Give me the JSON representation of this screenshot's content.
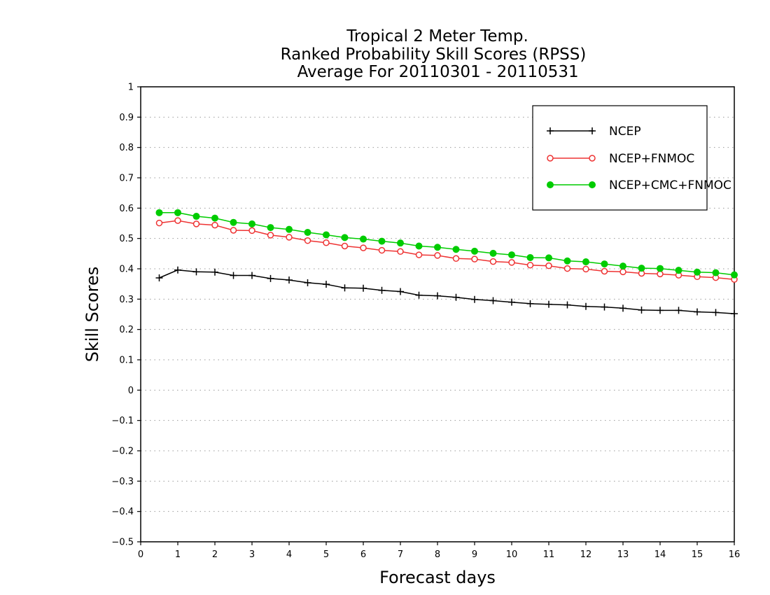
{
  "chart_data": {
    "type": "line",
    "title": [
      "Tropical 2 Meter Temp.",
      "Ranked Probability Skill Scores (RPSS)",
      " Average For 20110301 - 20110531"
    ],
    "xlabel": "Forecast days",
    "ylabel": "Skill Scores",
    "xlim": [
      0,
      16
    ],
    "ylim": [
      -0.5,
      1
    ],
    "xticks": [
      0,
      1,
      2,
      3,
      4,
      5,
      6,
      7,
      8,
      9,
      10,
      11,
      12,
      13,
      14,
      15,
      16
    ],
    "yticks": [
      1,
      0.9,
      0.8,
      0.7,
      0.6,
      0.5,
      0.4,
      0.3,
      0.2,
      0.1,
      0,
      -0.1,
      -0.2,
      -0.3,
      -0.4,
      -0.5
    ],
    "ytick_labels": [
      "1",
      "0.9",
      "0.8",
      "0.7",
      "0.6",
      "0.5",
      "0.4",
      "0.3",
      "0.2",
      "0.1",
      "0",
      "−0.1",
      "−0.2",
      "−0.3",
      "−0.4",
      "−0.5"
    ],
    "grid": "horizontal-dotted",
    "legend_position": "top-right",
    "x": [
      0.5,
      1,
      1.5,
      2,
      2.5,
      3,
      3.5,
      4,
      4.5,
      5,
      5.5,
      6,
      6.5,
      7,
      7.5,
      8,
      8.5,
      9,
      9.5,
      10,
      10.5,
      11,
      11.5,
      12,
      12.5,
      13,
      13.5,
      14,
      14.5,
      15,
      15.5,
      16
    ],
    "series": [
      {
        "name": "NCEP",
        "color": "#000000",
        "marker": "plus",
        "values": [
          0.37,
          0.396,
          0.39,
          0.389,
          0.378,
          0.378,
          0.368,
          0.363,
          0.354,
          0.349,
          0.337,
          0.336,
          0.329,
          0.325,
          0.313,
          0.311,
          0.306,
          0.299,
          0.295,
          0.29,
          0.285,
          0.283,
          0.281,
          0.276,
          0.274,
          0.27,
          0.264,
          0.263,
          0.263,
          0.258,
          0.256,
          0.252
        ]
      },
      {
        "name": "NCEP+FNMOC",
        "color": "#ee3333",
        "marker": "open-circle",
        "values": [
          0.551,
          0.559,
          0.548,
          0.544,
          0.527,
          0.526,
          0.511,
          0.504,
          0.493,
          0.486,
          0.475,
          0.469,
          0.461,
          0.457,
          0.446,
          0.444,
          0.434,
          0.432,
          0.424,
          0.421,
          0.412,
          0.41,
          0.401,
          0.399,
          0.392,
          0.39,
          0.385,
          0.383,
          0.379,
          0.374,
          0.371,
          0.365
        ]
      },
      {
        "name": "NCEP+CMC+FNMOC",
        "color": "#00cc00",
        "marker": "filled-circle",
        "values": [
          0.585,
          0.585,
          0.573,
          0.567,
          0.553,
          0.548,
          0.536,
          0.53,
          0.52,
          0.512,
          0.503,
          0.498,
          0.491,
          0.485,
          0.475,
          0.471,
          0.464,
          0.458,
          0.451,
          0.446,
          0.437,
          0.436,
          0.426,
          0.423,
          0.416,
          0.409,
          0.402,
          0.401,
          0.395,
          0.389,
          0.387,
          0.38
        ]
      }
    ]
  }
}
